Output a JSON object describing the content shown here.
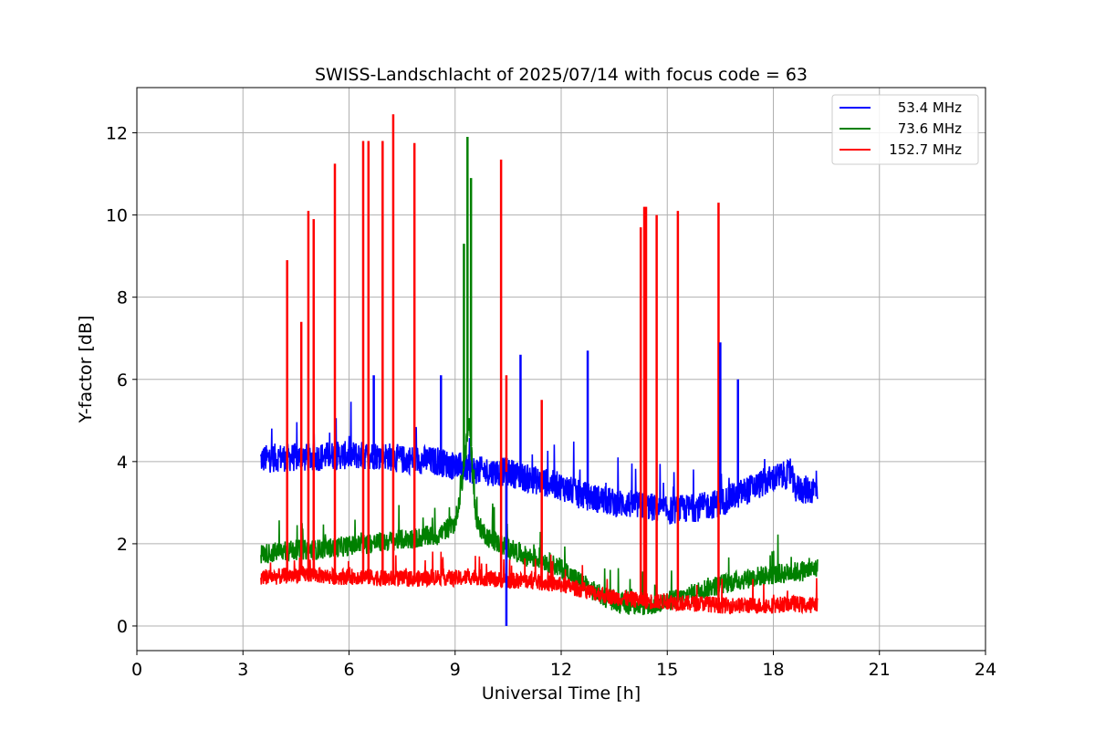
{
  "chart_data": {
    "type": "line",
    "title": "SWISS-Landschlacht of 2025/07/14 with focus code = 63",
    "xlabel": "Universal Time [h]",
    "ylabel": "Y-factor [dB]",
    "xlim": [
      0,
      24
    ],
    "ylim": [
      -0.6,
      13.1
    ],
    "xticks": [
      0,
      3,
      6,
      9,
      12,
      15,
      18,
      21,
      24
    ],
    "yticks": [
      0,
      2,
      4,
      6,
      8,
      10,
      12
    ],
    "grid": true,
    "legend_position": "top-right",
    "series": [
      {
        "name": "53.4 MHz",
        "color": "#0000ff",
        "x": [
          3.5,
          4.0,
          4.5,
          5.0,
          5.5,
          6.0,
          6.5,
          7.0,
          7.5,
          8.0,
          8.5,
          9.0,
          9.5,
          10.0,
          10.5,
          11.0,
          11.5,
          12.0,
          12.5,
          13.0,
          13.5,
          14.0,
          14.5,
          15.0,
          15.5,
          16.0,
          16.5,
          17.0,
          17.5,
          18.0,
          18.5,
          18.6,
          19.0,
          19.25
        ],
        "y": [
          4.05,
          4.1,
          4.1,
          4.1,
          4.15,
          4.15,
          4.15,
          4.15,
          4.05,
          4.05,
          4.0,
          3.9,
          3.8,
          3.75,
          3.75,
          3.6,
          3.5,
          3.4,
          3.2,
          3.1,
          3.0,
          2.95,
          2.9,
          2.8,
          2.85,
          2.9,
          3.0,
          3.2,
          3.4,
          3.6,
          3.7,
          3.35,
          3.3,
          3.35
        ]
      },
      {
        "name": "73.6 MHz",
        "color": "#008000",
        "x": [
          3.5,
          4.0,
          4.5,
          5.0,
          5.5,
          6.0,
          6.5,
          7.0,
          7.5,
          8.0,
          8.5,
          9.0,
          9.2,
          9.4,
          9.6,
          10.0,
          10.5,
          11.0,
          11.5,
          12.0,
          12.5,
          13.0,
          13.5,
          14.0,
          14.5,
          15.0,
          15.5,
          16.0,
          16.5,
          17.0,
          17.5,
          18.0,
          18.5,
          19.0,
          19.25
        ],
        "y": [
          1.75,
          1.8,
          1.85,
          1.85,
          1.9,
          1.95,
          2.0,
          2.05,
          2.1,
          2.15,
          2.2,
          2.5,
          3.5,
          5.0,
          2.5,
          2.1,
          1.9,
          1.7,
          1.6,
          1.4,
          1.1,
          0.8,
          0.6,
          0.5,
          0.5,
          0.6,
          0.7,
          0.9,
          1.0,
          1.1,
          1.2,
          1.25,
          1.3,
          1.35,
          1.4
        ]
      },
      {
        "name": "152.7 MHz",
        "color": "#ff0000",
        "x": [
          3.5,
          4.0,
          4.5,
          5.0,
          5.5,
          6.0,
          6.5,
          7.0,
          7.5,
          8.0,
          8.5,
          9.0,
          9.5,
          10.0,
          10.5,
          11.0,
          11.5,
          12.0,
          12.5,
          13.0,
          13.5,
          14.0,
          14.5,
          15.0,
          15.5,
          16.0,
          16.5,
          17.0,
          17.5,
          18.0,
          18.5,
          19.0,
          19.25
        ],
        "y": [
          1.2,
          1.2,
          1.25,
          1.25,
          1.2,
          1.2,
          1.2,
          1.15,
          1.15,
          1.15,
          1.2,
          1.15,
          1.2,
          1.15,
          1.1,
          1.1,
          1.05,
          1.0,
          0.9,
          0.8,
          0.7,
          0.65,
          0.6,
          0.6,
          0.55,
          0.55,
          0.5,
          0.5,
          0.5,
          0.5,
          0.55,
          0.5,
          0.55
        ]
      }
    ],
    "spikes": [
      {
        "series": "152.7 MHz",
        "x": [
          4.25,
          4.65,
          4.85,
          5.0,
          5.6,
          6.4,
          6.55,
          6.95,
          7.25,
          7.85,
          10.3,
          10.45,
          11.45,
          14.25,
          14.35,
          14.4,
          14.7,
          15.3,
          16.45
        ],
        "y": [
          8.9,
          7.4,
          10.1,
          9.9,
          11.25,
          11.8,
          11.8,
          11.8,
          12.45,
          11.75,
          11.35,
          6.1,
          5.5,
          9.7,
          10.2,
          10.2,
          10.0,
          10.1,
          10.3
        ]
      },
      {
        "series": "73.6 MHz",
        "x": [
          9.25,
          9.35,
          9.45
        ],
        "y": [
          9.3,
          11.9,
          10.9
        ]
      },
      {
        "series": "53.4 MHz",
        "x": [
          6.7,
          8.6,
          10.85,
          12.75,
          16.5,
          17.0
        ],
        "y": [
          6.1,
          6.1,
          6.6,
          6.7,
          6.9,
          6.0
        ]
      },
      {
        "series": "53.4 MHz",
        "x": [
          10.45
        ],
        "y": [
          0.0
        ]
      }
    ]
  }
}
